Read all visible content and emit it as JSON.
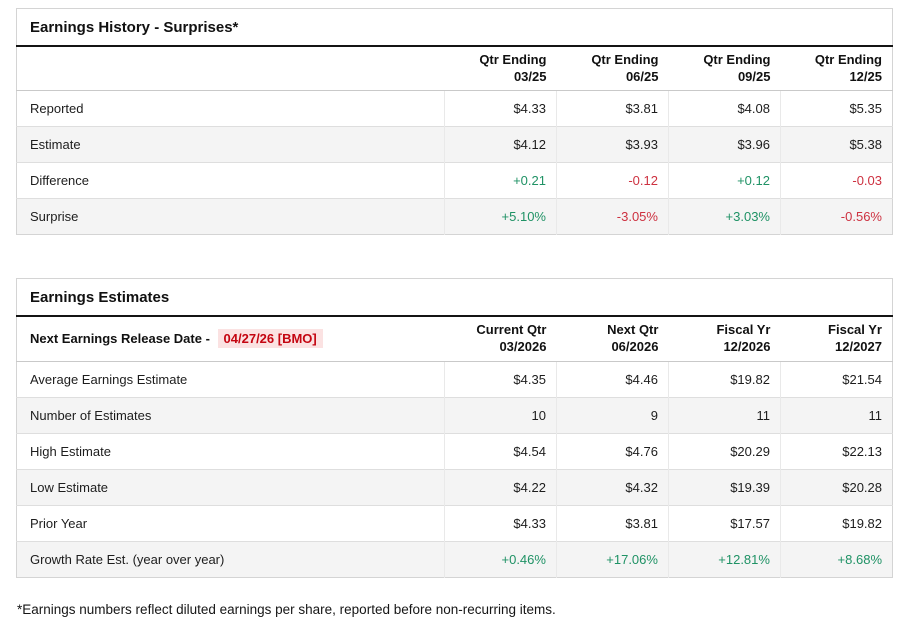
{
  "colors": {
    "pos": "#1f9265",
    "neg": "#cd3140",
    "date_text": "#c40511",
    "date_bg": "#fbe2e2"
  },
  "earnings_history": {
    "title": "Earnings History - Surprises*",
    "columns": [
      {
        "l1": "Qtr Ending",
        "l2": "03/25"
      },
      {
        "l1": "Qtr Ending",
        "l2": "06/25"
      },
      {
        "l1": "Qtr Ending",
        "l2": "09/25"
      },
      {
        "l1": "Qtr Ending",
        "l2": "12/25"
      }
    ],
    "rows": [
      {
        "label": "Reported",
        "values": [
          {
            "text": "$4.33",
            "tone": "default"
          },
          {
            "text": "$3.81",
            "tone": "default"
          },
          {
            "text": "$4.08",
            "tone": "default"
          },
          {
            "text": "$5.35",
            "tone": "default"
          }
        ]
      },
      {
        "label": "Estimate",
        "values": [
          {
            "text": "$4.12",
            "tone": "default"
          },
          {
            "text": "$3.93",
            "tone": "default"
          },
          {
            "text": "$3.96",
            "tone": "default"
          },
          {
            "text": "$5.38",
            "tone": "default"
          }
        ]
      },
      {
        "label": "Difference",
        "values": [
          {
            "text": "+0.21",
            "tone": "pos"
          },
          {
            "text": "-0.12",
            "tone": "neg"
          },
          {
            "text": "+0.12",
            "tone": "pos"
          },
          {
            "text": "-0.03",
            "tone": "neg"
          }
        ]
      },
      {
        "label": "Surprise",
        "values": [
          {
            "text": "+5.10%",
            "tone": "pos"
          },
          {
            "text": "-3.05%",
            "tone": "neg"
          },
          {
            "text": "+3.03%",
            "tone": "pos"
          },
          {
            "text": "-0.56%",
            "tone": "neg"
          }
        ]
      }
    ]
  },
  "earnings_estimates": {
    "title": "Earnings Estimates",
    "release_date_label": "Next Earnings Release Date -",
    "release_date_value": "04/27/26 [BMO]",
    "columns": [
      {
        "l1": "Current Qtr",
        "l2": "03/2026"
      },
      {
        "l1": "Next Qtr",
        "l2": "06/2026"
      },
      {
        "l1": "Fiscal Yr",
        "l2": "12/2026"
      },
      {
        "l1": "Fiscal Yr",
        "l2": "12/2027"
      }
    ],
    "rows": [
      {
        "label": "Average Earnings Estimate",
        "values": [
          {
            "text": "$4.35",
            "tone": "default"
          },
          {
            "text": "$4.46",
            "tone": "default"
          },
          {
            "text": "$19.82",
            "tone": "default"
          },
          {
            "text": "$21.54",
            "tone": "default"
          }
        ]
      },
      {
        "label": "Number of Estimates",
        "values": [
          {
            "text": "10",
            "tone": "default"
          },
          {
            "text": "9",
            "tone": "default"
          },
          {
            "text": "11",
            "tone": "default"
          },
          {
            "text": "11",
            "tone": "default"
          }
        ]
      },
      {
        "label": "High Estimate",
        "values": [
          {
            "text": "$4.54",
            "tone": "default"
          },
          {
            "text": "$4.76",
            "tone": "default"
          },
          {
            "text": "$20.29",
            "tone": "default"
          },
          {
            "text": "$22.13",
            "tone": "default"
          }
        ]
      },
      {
        "label": "Low Estimate",
        "values": [
          {
            "text": "$4.22",
            "tone": "default"
          },
          {
            "text": "$4.32",
            "tone": "default"
          },
          {
            "text": "$19.39",
            "tone": "default"
          },
          {
            "text": "$20.28",
            "tone": "default"
          }
        ]
      },
      {
        "label": "Prior Year",
        "values": [
          {
            "text": "$4.33",
            "tone": "default"
          },
          {
            "text": "$3.81",
            "tone": "default"
          },
          {
            "text": "$17.57",
            "tone": "default"
          },
          {
            "text": "$19.82",
            "tone": "default"
          }
        ]
      },
      {
        "label": "Growth Rate Est. (year over year)",
        "values": [
          {
            "text": "+0.46%",
            "tone": "pos"
          },
          {
            "text": "+17.06%",
            "tone": "pos"
          },
          {
            "text": "+12.81%",
            "tone": "pos"
          },
          {
            "text": "+8.68%",
            "tone": "pos"
          }
        ]
      }
    ]
  },
  "footnote": "*Earnings numbers reflect diluted earnings per share, reported before non-recurring items."
}
